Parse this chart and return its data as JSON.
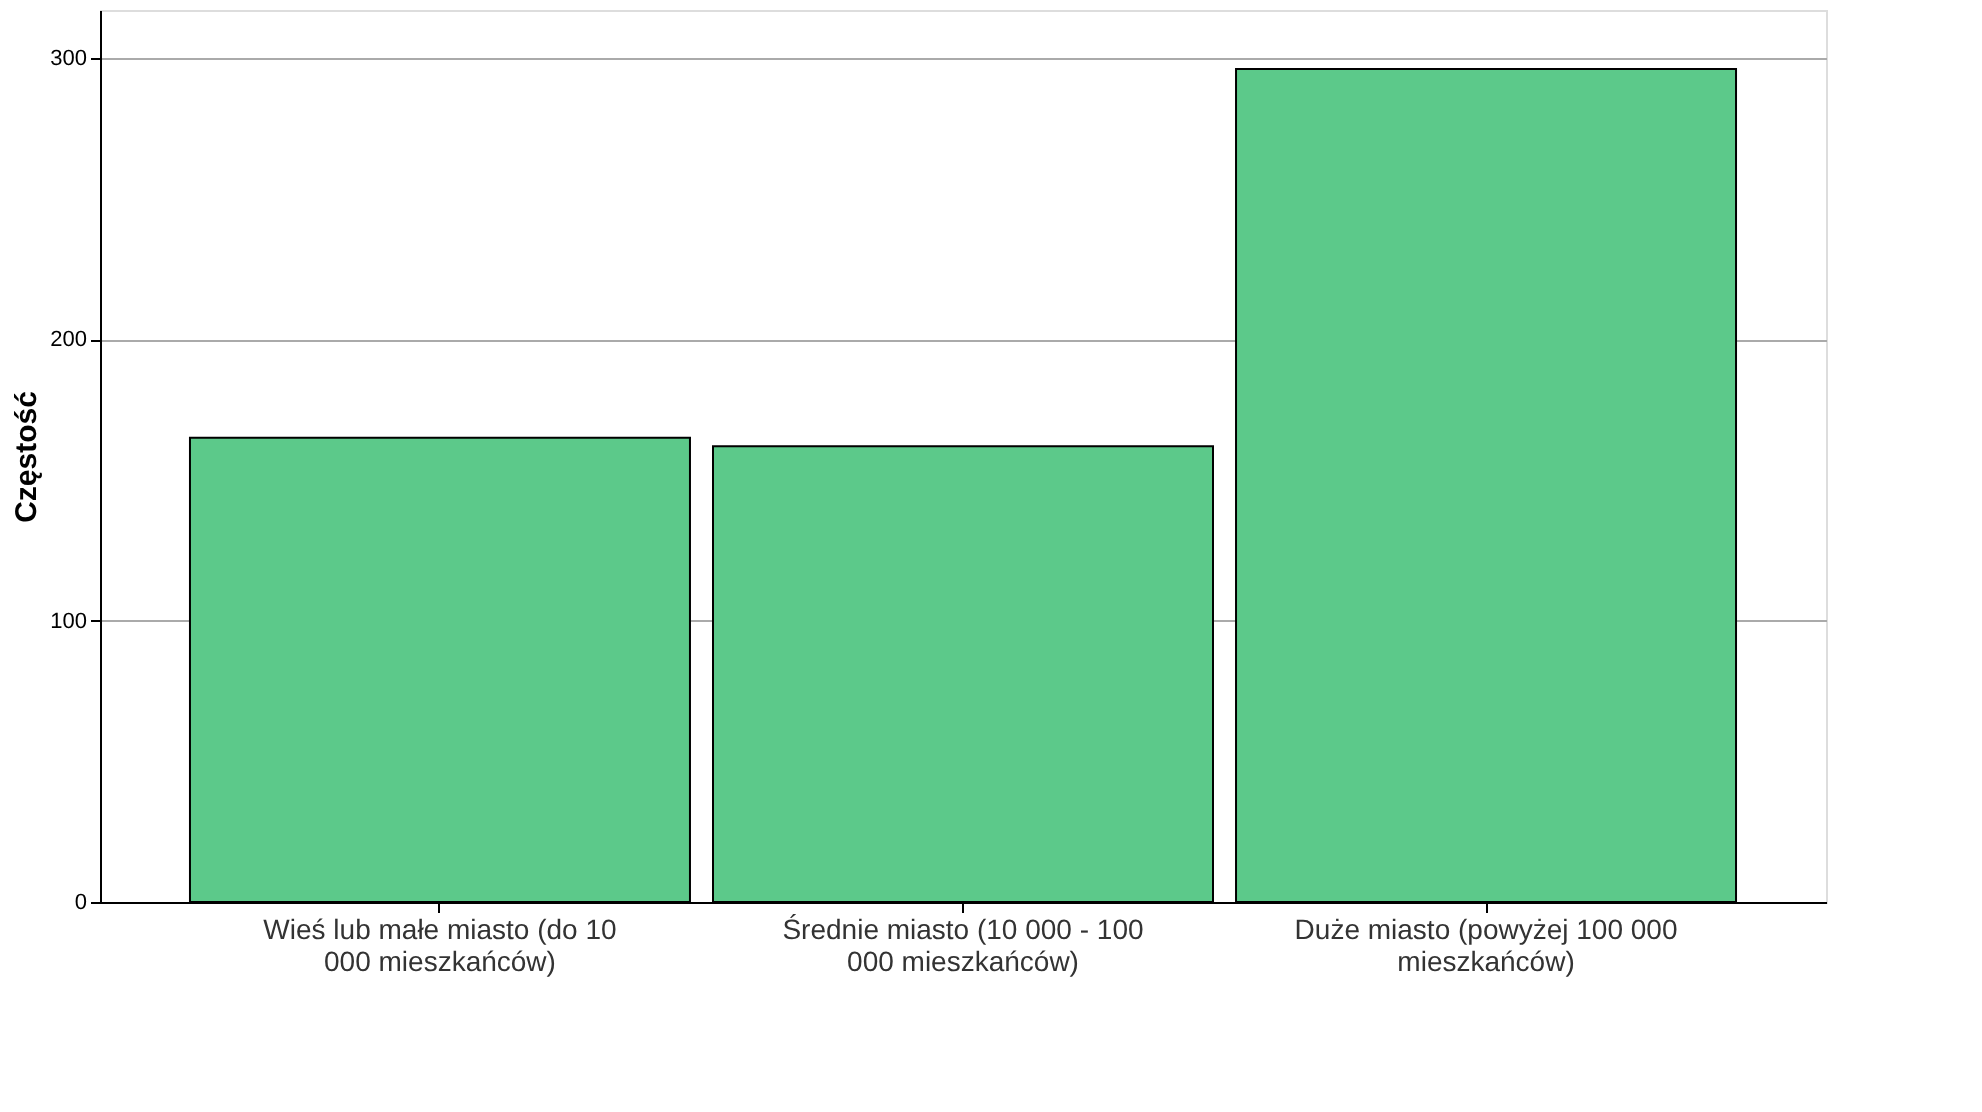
{
  "chart_data": {
    "type": "bar",
    "ylabel": "Częstość",
    "categories": [
      "Wieś lub małe miasto (do 10 000 mieszkańców)",
      "Średnie miasto (10 000 - 100 000 mieszkańców)",
      "Duże miasto (powyżej 100 000 mieszkańców)"
    ],
    "values": [
      165,
      162,
      296
    ],
    "color": "#5cc98a",
    "ylim": [
      0,
      317
    ],
    "yticks": [
      0,
      100,
      200,
      300
    ],
    "grid": "y"
  }
}
